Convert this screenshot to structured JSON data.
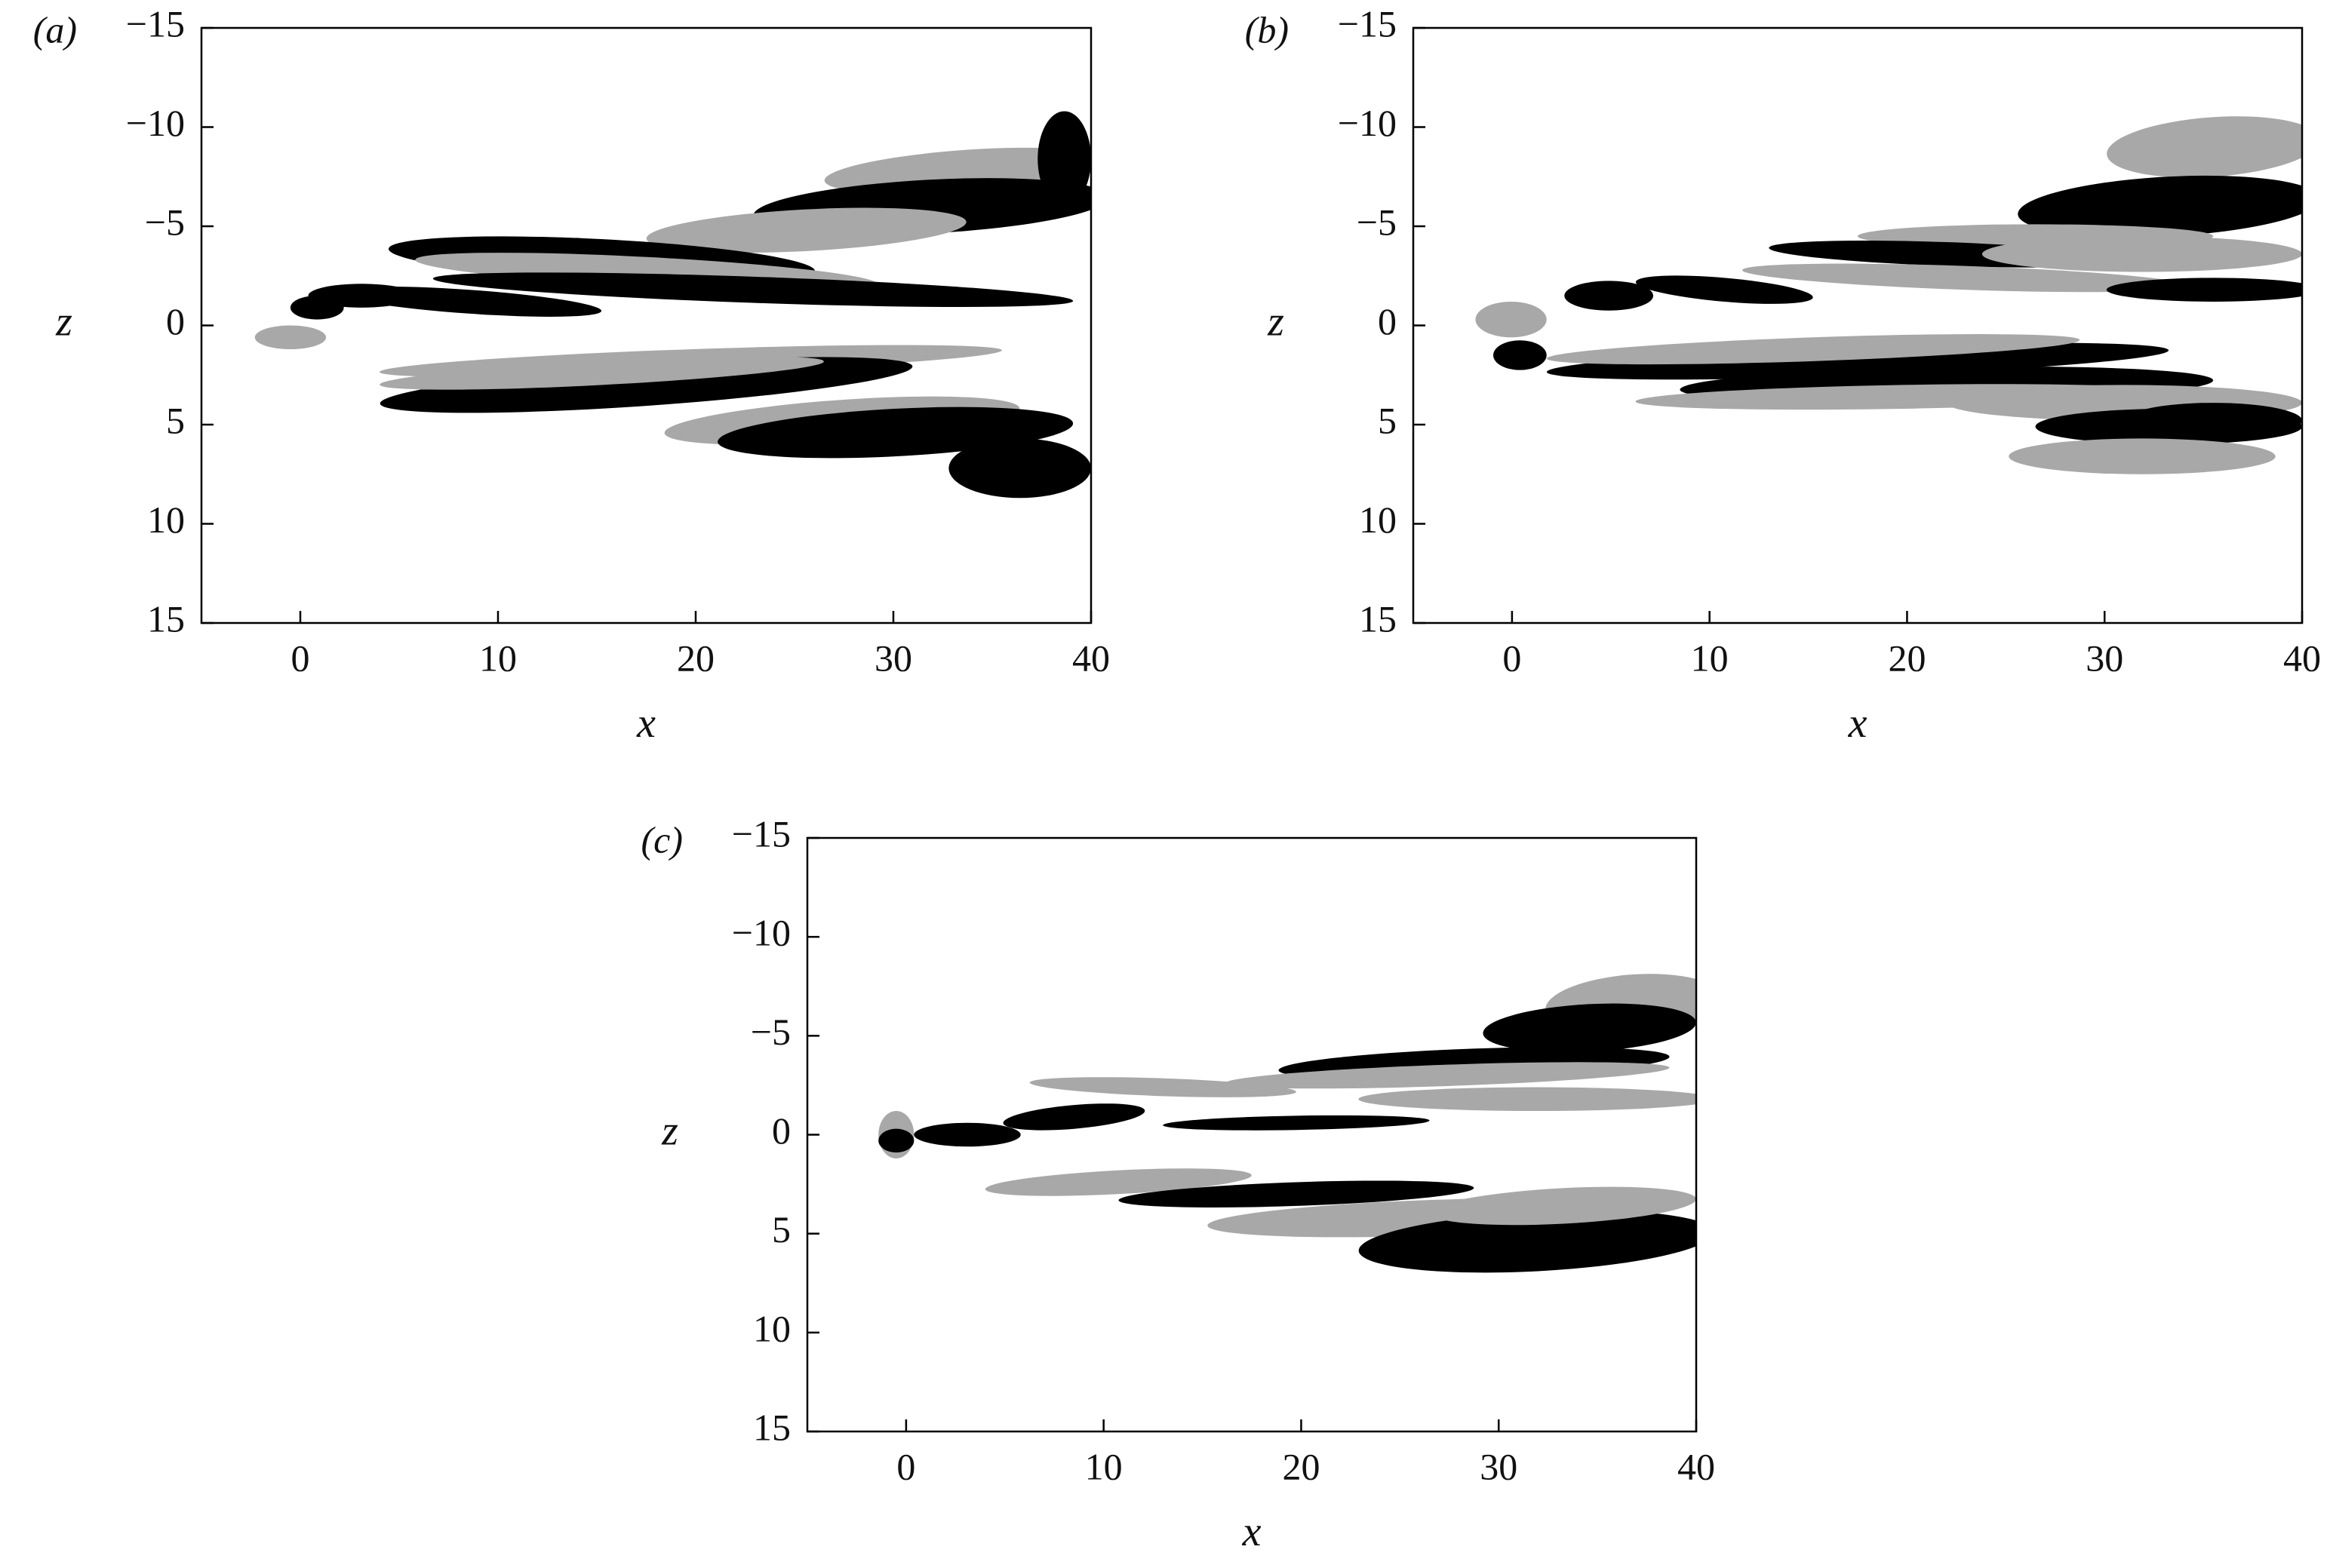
{
  "chart_data": [
    {
      "type": "contour",
      "panel_label": "(a)",
      "xlabel": "x",
      "ylabel": "z",
      "xlim": [
        -5,
        40
      ],
      "ylim": [
        15,
        -15
      ],
      "xticks": [
        0,
        10,
        20,
        30,
        40
      ],
      "yticks": [
        {
          "value": -15,
          "label": "−15"
        },
        {
          "value": -10,
          "label": "−10"
        },
        {
          "value": -5,
          "label": "−5"
        },
        0,
        5,
        10,
        15
      ]
    },
    {
      "type": "contour",
      "panel_label": "(b)",
      "xlabel": "x",
      "ylabel": "z",
      "xlim": [
        -5,
        40
      ],
      "ylim": [
        15,
        -15
      ],
      "xticks": [
        0,
        10,
        20,
        30,
        40
      ],
      "yticks": [
        {
          "value": -15,
          "label": "−15"
        },
        {
          "value": -10,
          "label": "−10"
        },
        {
          "value": -5,
          "label": "−5"
        },
        0,
        5,
        10,
        15
      ]
    },
    {
      "type": "contour",
      "panel_label": "(c)",
      "xlabel": "x",
      "ylabel": "z",
      "xlim": [
        -5,
        40
      ],
      "ylim": [
        15,
        -15
      ],
      "xticks": [
        0,
        10,
        20,
        30,
        40
      ],
      "yticks": [
        {
          "value": -15,
          "label": "−15"
        },
        {
          "value": -10,
          "label": "−10"
        },
        {
          "value": -5,
          "label": "−5"
        },
        0,
        5,
        10,
        15
      ]
    }
  ]
}
